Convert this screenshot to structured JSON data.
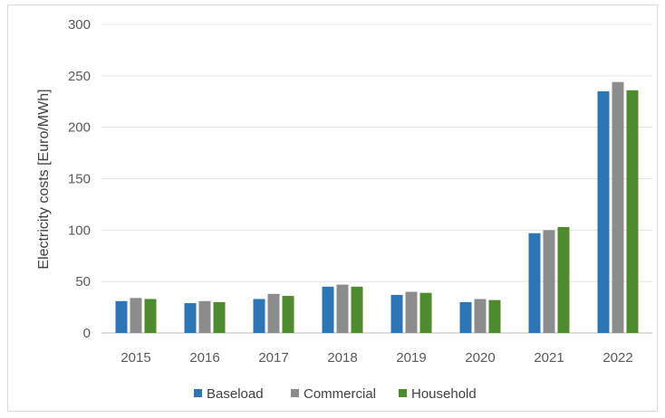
{
  "chart_data": {
    "type": "bar",
    "title": "",
    "xlabel": "",
    "ylabel": "Electricity costs [Euro/MWh]",
    "ylim": [
      0,
      300
    ],
    "yticks": [
      0,
      50,
      100,
      150,
      200,
      250,
      300
    ],
    "grid": true,
    "legend_position": "bottom",
    "categories": [
      "2015",
      "2016",
      "2017",
      "2018",
      "2019",
      "2020",
      "2021",
      "2022"
    ],
    "series": [
      {
        "name": "Baseload",
        "color": "#2e75b6",
        "values": [
          31,
          29,
          33,
          45,
          37,
          30,
          97,
          235
        ]
      },
      {
        "name": "Commercial",
        "color": "#8c8c8c",
        "values": [
          34,
          31,
          38,
          47,
          40,
          33,
          100,
          244
        ]
      },
      {
        "name": "Household",
        "color": "#4e8a2e",
        "values": [
          33,
          30,
          36,
          45,
          39,
          32,
          103,
          236
        ]
      }
    ]
  }
}
